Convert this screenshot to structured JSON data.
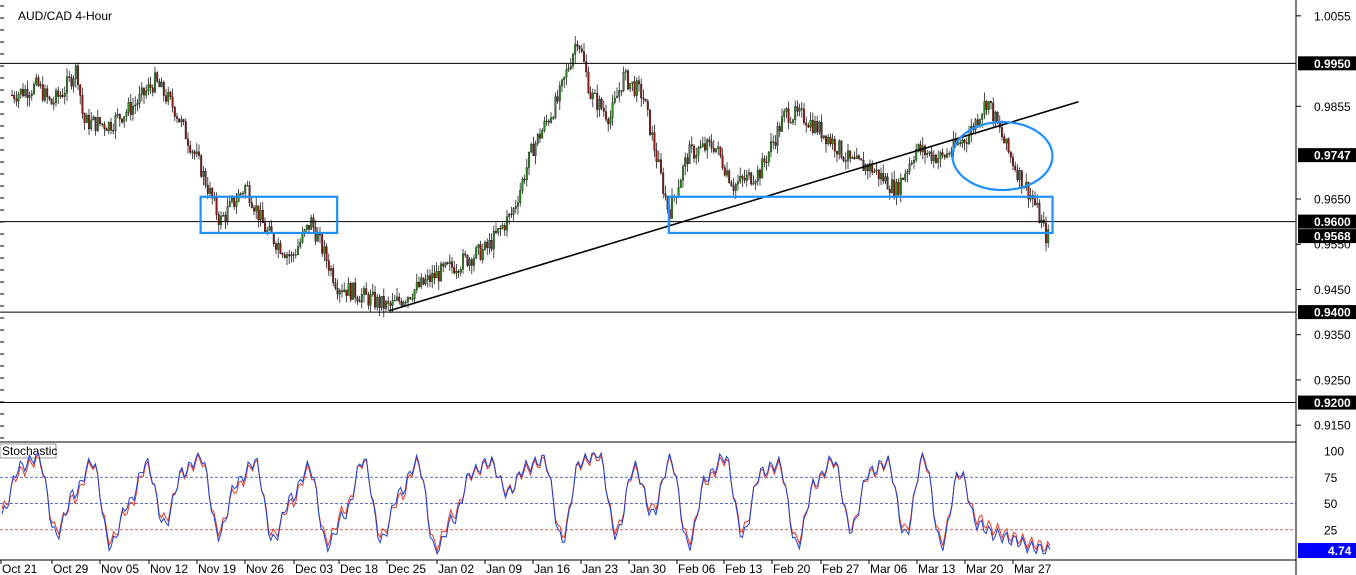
{
  "chart_data": [
    {
      "type": "candlestick",
      "title": "AUD/CAD 4-Hour",
      "y_ticks": [
        "1.0055",
        "0.9855",
        "0.9650",
        "0.9550",
        "0.9450",
        "0.9350",
        "0.9250",
        "0.9150"
      ],
      "y_range": [
        0.9115,
        1.009
      ],
      "x_labels": [
        "Oct 21",
        "Oct 29",
        "Nov 05",
        "Nov 12",
        "Nov 19",
        "Nov 26",
        "Dec 03",
        "Dec 18",
        "Dec 25",
        "Jan 02",
        "Jan 09",
        "Jan 16",
        "Jan 23",
        "Jan 30",
        "Feb 06",
        "Feb 13",
        "Feb 20",
        "Feb 27",
        "Mar 06",
        "Mar 13",
        "Mar 20",
        "Mar 27"
      ],
      "horizontal_levels": [
        {
          "label": "0.9950",
          "value": 0.995
        },
        {
          "label": "0.9600",
          "value": 0.96
        },
        {
          "label": "0.9400",
          "value": 0.94
        },
        {
          "label": "0.9200",
          "value": 0.92
        }
      ],
      "price_tags": [
        {
          "label": "0.9747",
          "value": 0.9747
        },
        {
          "label": "0.9568",
          "value": 0.9568
        }
      ],
      "trendline": {
        "from": {
          "x": "Dec 18",
          "y": 0.9403
        },
        "to": {
          "x": "Apr 03",
          "y": 0.9865
        }
      },
      "annotations": [
        {
          "type": "rectangle",
          "x_from": "Nov 19",
          "x_to": "Dec 10",
          "y_from": 0.9575,
          "y_to": 0.9655,
          "color": "#1e90ff"
        },
        {
          "type": "rectangle",
          "x_from": "Jan 30",
          "x_to": "Mar 30",
          "y_from": 0.9575,
          "y_to": 0.9655,
          "color": "#1e90ff"
        },
        {
          "type": "ellipse",
          "center": {
            "x": "Mar 20",
            "y": 0.9745
          },
          "color": "#1e90ff"
        }
      ],
      "price_path": [
        {
          "x": "Oct 21",
          "y": 0.988
        },
        {
          "x": "Oct 25",
          "y": 0.99
        },
        {
          "x": "Oct 27",
          "y": 0.986
        },
        {
          "x": "Oct 29",
          "y": 0.989
        },
        {
          "x": "Oct 31",
          "y": 0.994
        },
        {
          "x": "Nov 01",
          "y": 0.982
        },
        {
          "x": "Nov 05",
          "y": 0.9815
        },
        {
          "x": "Nov 09",
          "y": 0.986
        },
        {
          "x": "Nov 12",
          "y": 0.991
        },
        {
          "x": "Nov 15",
          "y": 0.985
        },
        {
          "x": "Nov 19",
          "y": 0.972
        },
        {
          "x": "Nov 22",
          "y": 0.96
        },
        {
          "x": "Nov 24",
          "y": 0.964
        },
        {
          "x": "Nov 26",
          "y": 0.968
        },
        {
          "x": "Nov 29",
          "y": 0.958
        },
        {
          "x": "Dec 03",
          "y": 0.952
        },
        {
          "x": "Dec 06",
          "y": 0.96
        },
        {
          "x": "Dec 10",
          "y": 0.946
        },
        {
          "x": "Dec 18",
          "y": 0.941
        },
        {
          "x": "Dec 25",
          "y": 0.948
        },
        {
          "x": "Jan 02",
          "y": 0.954
        },
        {
          "x": "Jan 06",
          "y": 0.962
        },
        {
          "x": "Jan 09",
          "y": 0.976
        },
        {
          "x": "Jan 13",
          "y": 0.987
        },
        {
          "x": "Jan 16",
          "y": 1.001
        },
        {
          "x": "Jan 18",
          "y": 0.988
        },
        {
          "x": "Jan 21",
          "y": 0.983
        },
        {
          "x": "Jan 23",
          "y": 0.992
        },
        {
          "x": "Jan 26",
          "y": 0.988
        },
        {
          "x": "Jan 30",
          "y": 0.962
        },
        {
          "x": "Feb 02",
          "y": 0.975
        },
        {
          "x": "Feb 06",
          "y": 0.977
        },
        {
          "x": "Feb 09",
          "y": 0.968
        },
        {
          "x": "Feb 13",
          "y": 0.971
        },
        {
          "x": "Feb 17",
          "y": 0.984
        },
        {
          "x": "Feb 20",
          "y": 0.983
        },
        {
          "x": "Feb 24",
          "y": 0.978
        },
        {
          "x": "Feb 27",
          "y": 0.973
        },
        {
          "x": "Mar 02",
          "y": 0.972
        },
        {
          "x": "Mar 06",
          "y": 0.967
        },
        {
          "x": "Mar 09",
          "y": 0.976
        },
        {
          "x": "Mar 13",
          "y": 0.974
        },
        {
          "x": "Mar 17",
          "y": 0.979
        },
        {
          "x": "Mar 20",
          "y": 0.987
        },
        {
          "x": "Mar 23",
          "y": 0.976
        },
        {
          "x": "Mar 25",
          "y": 0.97
        },
        {
          "x": "Mar 27",
          "y": 0.965
        },
        {
          "x": "Mar 29",
          "y": 0.9568
        }
      ]
    },
    {
      "type": "line",
      "title": "Stochastic",
      "y_ticks": [
        "100",
        "75",
        "50",
        "25",
        "0"
      ],
      "y_range": [
        0,
        100
      ],
      "levels": [
        75,
        50,
        25
      ],
      "current_value": "4.74",
      "series": [
        {
          "color": "#1f3fd0",
          "values": [
            40,
            85,
            95,
            20,
            60,
            90,
            10,
            50,
            88,
            30,
            80,
            95,
            20,
            70,
            90,
            15,
            55,
            85,
            10,
            40,
            92,
            15,
            60,
            90,
            5,
            35,
            80,
            90,
            60,
            85,
            92,
            15,
            90,
            98,
            20,
            85,
            40,
            92,
            10,
            75,
            95,
            20,
            80,
            88,
            10,
            70,
            92,
            25,
            80,
            90,
            20,
            95,
            10,
            80,
            30,
            20,
            15,
            8,
            4.74
          ]
        },
        {
          "color": "#e23b2b",
          "values": [
            45,
            80,
            92,
            25,
            55,
            88,
            15,
            45,
            85,
            35,
            78,
            92,
            25,
            65,
            88,
            20,
            50,
            82,
            15,
            45,
            90,
            20,
            55,
            88,
            10,
            40,
            78,
            88,
            62,
            82,
            90,
            20,
            88,
            95,
            25,
            82,
            45,
            90,
            15,
            72,
            92,
            25,
            78,
            85,
            15,
            68,
            90,
            28,
            78,
            88,
            25,
            92,
            15,
            78,
            35,
            25,
            18,
            12,
            8
          ]
        }
      ]
    }
  ],
  "colors": {
    "bull_candle": "#2e8b22",
    "bear_candle": "#8b1a1a",
    "annotation": "#1e90ff",
    "tag_bg": "#000000",
    "current_tag_bg": "#0000ff"
  }
}
